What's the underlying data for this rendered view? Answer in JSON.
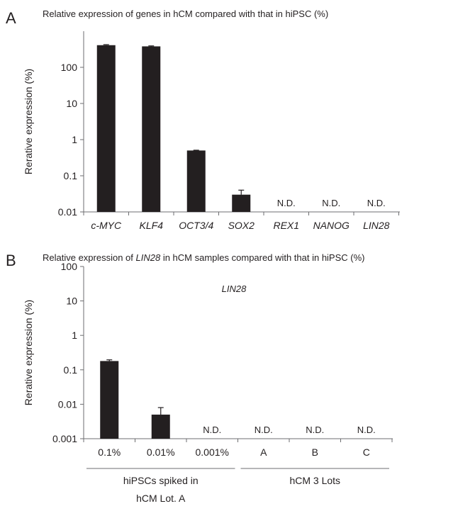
{
  "panels": [
    {
      "letter": "A",
      "title_pre": "Relative expression of genes in hCM compared with that in hiPSC (%)",
      "title_italic": "",
      "title_post": "",
      "subtitle": ""
    },
    {
      "letter": "B",
      "title_pre": "Relative expression of ",
      "title_italic": "LIN28",
      "title_post": " in hCM samples compared with that in hiPSC (%)",
      "subtitle": "LIN28"
    }
  ],
  "chart_data": [
    {
      "type": "bar",
      "title": "Relative expression of genes in hCM compared with that in hiPSC (%)",
      "ylabel": "Rerative expression (%)",
      "yscale": "log",
      "ylim": [
        0.01,
        1000
      ],
      "yticks": [
        "0.01",
        "0.1",
        "1",
        "10",
        "100"
      ],
      "categories": [
        "c-MYC",
        "KLF4",
        "OCT3/4",
        "SOX2",
        "REX1",
        "NANOG",
        "LIN28"
      ],
      "values": [
        410,
        380,
        0.5,
        0.03,
        null,
        null,
        null
      ],
      "errors": [
        15,
        12,
        0.01,
        0.01,
        null,
        null,
        null
      ],
      "labels": [
        "",
        "",
        "",
        "",
        "N.D.",
        "N.D.",
        "N.D."
      ],
      "color": "#231f20"
    },
    {
      "type": "bar",
      "title": "Relative expression of LIN28 in hCM samples compared with that in hiPSC (%)",
      "subtitle": "LIN28",
      "ylabel": "Rerative expression (%)",
      "yscale": "log",
      "ylim": [
        0.001,
        100
      ],
      "yticks": [
        "0.001",
        "0.01",
        "0.1",
        "1",
        "10",
        "100"
      ],
      "categories": [
        "0.1%",
        "0.01%",
        "0.001%",
        "A",
        "B",
        "C"
      ],
      "values": [
        0.18,
        0.005,
        null,
        null,
        null,
        null
      ],
      "errors": [
        0.015,
        0.003,
        null,
        null,
        null,
        null
      ],
      "labels": [
        "",
        "",
        "N.D.",
        "N.D.",
        "N.D.",
        "N.D."
      ],
      "groups": [
        {
          "label_lines": [
            "hiPSCs spiked in",
            "hCM Lot. A"
          ],
          "span": [
            0,
            2
          ]
        },
        {
          "label_lines": [
            "hCM 3 Lots"
          ],
          "span": [
            3,
            5
          ]
        }
      ],
      "color": "#231f20"
    }
  ]
}
